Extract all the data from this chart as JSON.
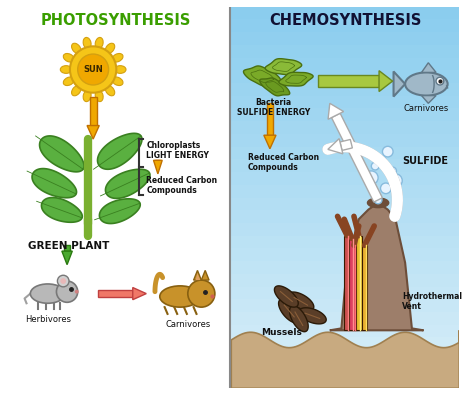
{
  "title_left": "PHOTOSYNTHESIS",
  "title_right": "CHEMOSYNTHESIS",
  "title_color_left": "#3a9e00",
  "title_color_right": "#111133",
  "bg_color": "#ffffff",
  "bg_color_right_top": "#d8eef8",
  "bg_color_right_bot": "#a8d4ee",
  "divider_color": "#888888",
  "sun_color": "#f5c518",
  "sun_petal": "#f5c518",
  "sun_outline": "#d4a010",
  "sun_center_color": "#f0a800",
  "arrow_orange": "#f0a800",
  "arrow_green_fill": "#a8c840",
  "arrow_green_edge": "#6a8820",
  "arrow_salmon": "#f07868",
  "arrow_white_fill": "#ffffff",
  "arrow_white_edge": "#aaaaaa",
  "plant_leaf": "#5ab040",
  "plant_leaf_edge": "#3a8020",
  "plant_stem": "#8bc34a",
  "label_chloroplasts": "Chloroplasts\nLIGHT ENERGY",
  "label_reduced_left": "Reduced Carbon\nCompounds",
  "label_green_plant": "GREEN PLANT",
  "label_herbivores": "Herbivores",
  "label_carnivores_left": "Carnivores",
  "label_bacteria": "Bacteria\nSULFIDE ENERGY",
  "label_carnivores_right": "Carnivores",
  "label_reduced_carbon": "Reduced Carbon\nCompounds",
  "label_sulfide": "SULFIDE",
  "label_mussels": "Mussels",
  "label_hydrothermal": "Hydrothermal\nVent",
  "label_sun": "SUN",
  "bacteria_color1": "#7aaa28",
  "bacteria_color2": "#6a9a20",
  "bacteria_edge": "#4a6a10",
  "fish_body": "#a0b8c8",
  "fish_edge": "#607888",
  "volcano_color": "#9d7e6a",
  "volcano_edge": "#6d4e3a",
  "ocean_floor_color": "#c8aa80",
  "ocean_floor_edge": "#a08050",
  "tube_red": "#c05050",
  "tube_pink": "#d07080",
  "tube_yellow": "#e8c040",
  "bubble_fill": "#e8f4ff",
  "bubble_edge": "#88bbdd",
  "mouse_color": "#b8b8b8",
  "mouse_edge": "#787878",
  "cat_color": "#c8922a",
  "cat_edge": "#886010"
}
